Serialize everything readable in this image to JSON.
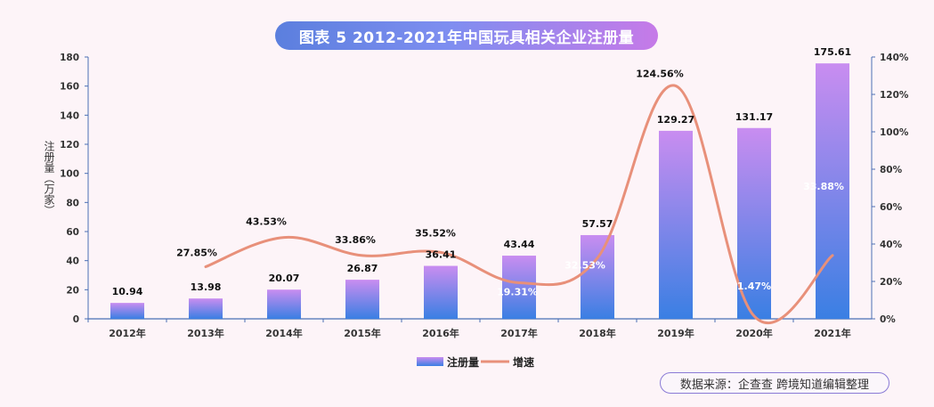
{
  "chart_data": {
    "type": "bar",
    "title": "图表 5 2012-2021年中国玩具相关企业注册量",
    "ylabel": "注册量（万家）",
    "categories": [
      "2012年",
      "2013年",
      "2014年",
      "2015年",
      "2016年",
      "2017年",
      "2018年",
      "2019年",
      "2020年",
      "2021年"
    ],
    "series": [
      {
        "name": "注册量",
        "type": "bar",
        "axis": "left",
        "values": [
          10.94,
          13.98,
          20.07,
          26.87,
          36.41,
          43.44,
          57.57,
          129.27,
          131.17,
          175.61
        ],
        "labels": [
          "10.94",
          "13.98",
          "20.07",
          "26.87",
          "36.41",
          "43.44",
          "57.57",
          "129.27",
          "131.17",
          "175.61"
        ]
      },
      {
        "name": "增速",
        "type": "line",
        "axis": "right",
        "values": [
          null,
          27.85,
          43.53,
          33.86,
          35.52,
          19.31,
          32.53,
          124.56,
          1.47,
          33.88
        ],
        "labels": [
          "",
          "27.85%",
          "43.53%",
          "33.86%",
          "35.52%",
          "19.31%",
          "32.53%",
          "124.56%",
          "1.47%",
          "33.88%"
        ]
      }
    ],
    "ylim": [
      0,
      180
    ],
    "yticks": [
      "0",
      "20",
      "40",
      "60",
      "80",
      "100",
      "120",
      "140",
      "160",
      "180"
    ],
    "y2lim": [
      0,
      140
    ],
    "y2ticks": [
      "0%",
      "20%",
      "40%",
      "60%",
      "80%",
      "100%",
      "120%",
      "140%"
    ],
    "legend": {
      "position": "bottom-center",
      "bar": "注册量",
      "line": "增速"
    },
    "colors": {
      "bar_top": "#c98df0",
      "bar_bottom": "#3a7fe3",
      "line": "#e8907a",
      "axis": "#4a6fb5"
    }
  },
  "source": "数据来源：企查查 跨境知道编辑整理"
}
